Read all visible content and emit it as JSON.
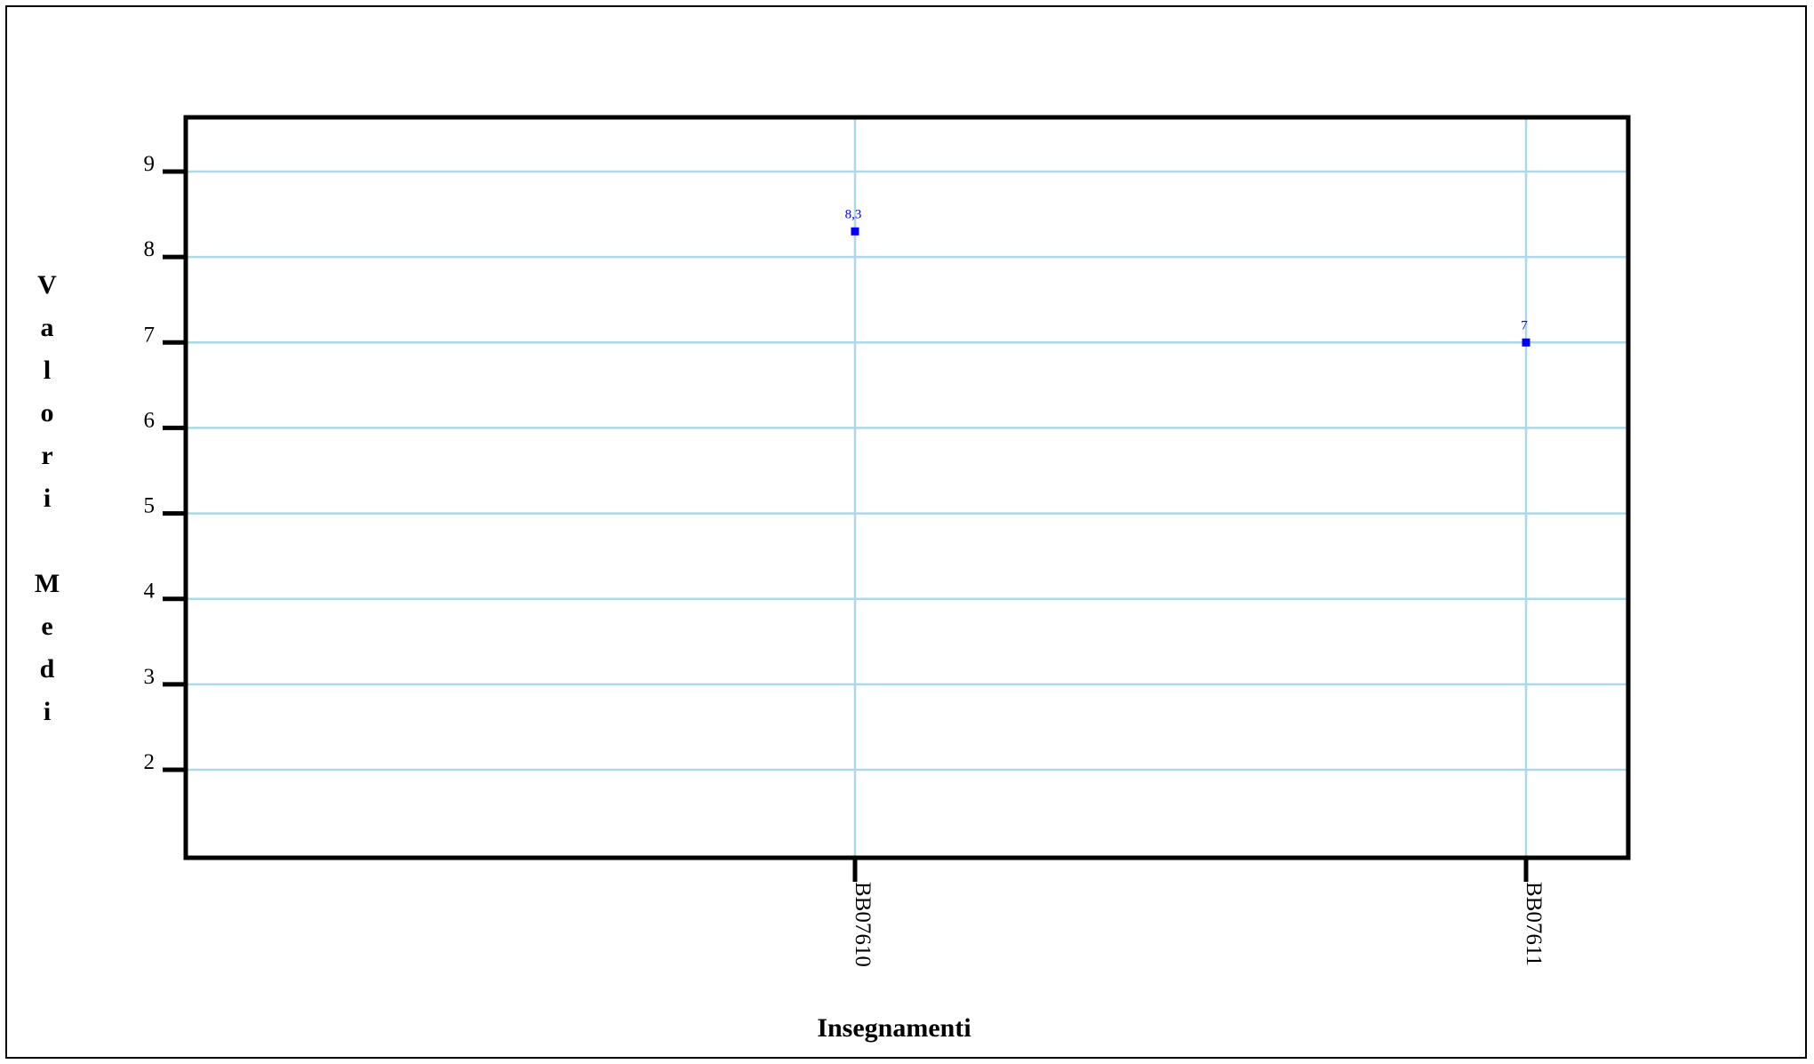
{
  "chart_data": {
    "type": "scatter",
    "categories": [
      "BB07610",
      "BB07611"
    ],
    "series": [
      {
        "values": [
          8.3,
          7
        ],
        "labels": [
          "8,3",
          "7"
        ],
        "color": "#0000ff"
      }
    ],
    "xlabel": "Insegnamenti",
    "ylabel": "Valori Medi",
    "yticks": [
      "2",
      "3",
      "4",
      "5",
      "6",
      "7",
      "8",
      "9"
    ],
    "ylim": [
      1,
      9.6
    ],
    "grid": true,
    "grid_color": "#add8e6",
    "axis_color": "#000000"
  }
}
